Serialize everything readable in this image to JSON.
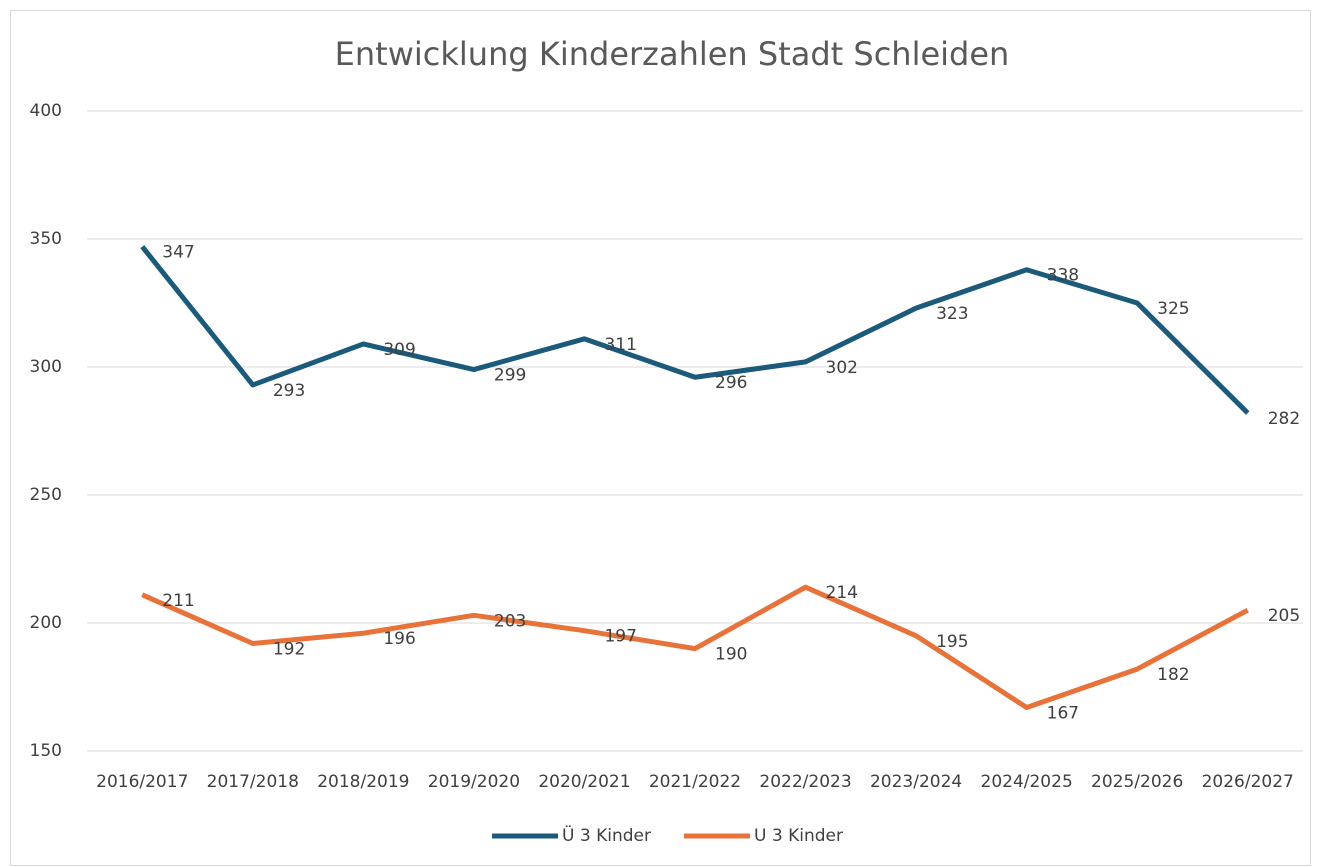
{
  "chart_data": {
    "type": "line",
    "title": "Entwicklung Kinderzahlen Stadt Schleiden",
    "categories": [
      "2016/2017",
      "2017/2018",
      "2018/2019",
      "2019/2020",
      "2020/2021",
      "2021/2022",
      "2022/2023",
      "2023/2024",
      "2024/2025",
      "2025/2026",
      "2026/2027"
    ],
    "series": [
      {
        "name": "Ü 3 Kinder",
        "color": "#1b5a7a",
        "values": [
          347,
          293,
          309,
          299,
          311,
          296,
          302,
          323,
          338,
          325,
          282
        ]
      },
      {
        "name": "U 3 Kinder",
        "color": "#e8733a",
        "values": [
          211,
          192,
          196,
          203,
          197,
          190,
          214,
          195,
          167,
          182,
          205
        ]
      }
    ],
    "ylim": [
      150,
      400
    ],
    "yticks": [
      150,
      200,
      250,
      300,
      350,
      400
    ],
    "grid": true,
    "legend": "bottom"
  }
}
